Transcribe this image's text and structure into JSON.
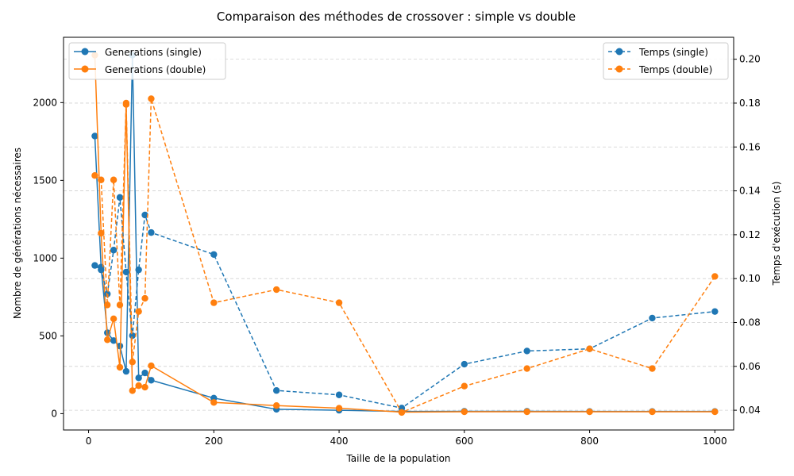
{
  "chart_data": {
    "type": "line",
    "title": "Comparaison des méthodes de crossover : simple vs double",
    "xlabel": "Taille de la population",
    "ylabel_left": "Nombre de générations nécessaires",
    "ylabel_right": "Temps d'exécution (s)",
    "xlim": [
      -40,
      1030
    ],
    "ylim_left": [
      -105,
      2420
    ],
    "ylim_right": [
      0.031,
      0.21
    ],
    "x_ticks": [
      "0",
      "200",
      "400",
      "600",
      "800",
      "1000"
    ],
    "y_left_ticks": [
      "0",
      "500",
      "1000",
      "1500",
      "2000"
    ],
    "y_right_ticks": [
      "0.04",
      "0.06",
      "0.08",
      "0.10",
      "0.12",
      "0.14",
      "0.16",
      "0.18",
      "0.20"
    ],
    "grid": "horizontal dashed (right axis)",
    "x": [
      10,
      20,
      30,
      40,
      50,
      60,
      70,
      80,
      90,
      100,
      200,
      300,
      400,
      500,
      600,
      700,
      800,
      900,
      1000
    ],
    "series": [
      {
        "name": "Generations (single)",
        "axis": "left",
        "style": "solid",
        "color": "#1f77b4",
        "values": [
          1785,
          942,
          520,
          470,
          435,
          272,
          2305,
          230,
          262,
          215,
          100,
          28,
          22,
          14,
          15,
          15,
          14,
          14,
          14
        ]
      },
      {
        "name": "Generations (double)",
        "axis": "left",
        "style": "solid",
        "color": "#ff7f0e",
        "values": [
          2305,
          1160,
          475,
          610,
          298,
          1988,
          148,
          180,
          170,
          308,
          72,
          52,
          35,
          10,
          12,
          12,
          12,
          12,
          12
        ]
      },
      {
        "name": "Temps (single)",
        "axis": "right",
        "style": "dashed",
        "color": "#1f77b4",
        "values": [
          0.106,
          0.104,
          0.093,
          0.113,
          0.137,
          0.103,
          0.074,
          0.104,
          0.129,
          0.121,
          0.111,
          0.049,
          0.047,
          0.041,
          0.061,
          0.067,
          0.068,
          0.082,
          0.085
        ]
      },
      {
        "name": "Temps (double)",
        "axis": "right",
        "style": "dashed",
        "color": "#ff7f0e",
        "values": [
          0.147,
          0.145,
          0.088,
          0.145,
          0.088,
          0.18,
          0.062,
          0.085,
          0.091,
          0.182,
          0.089,
          0.095,
          0.089,
          0.039,
          0.051,
          0.059,
          0.068,
          0.059,
          0.101
        ]
      }
    ],
    "legend_left_position": "top-left",
    "legend_right_position": "top-right"
  }
}
